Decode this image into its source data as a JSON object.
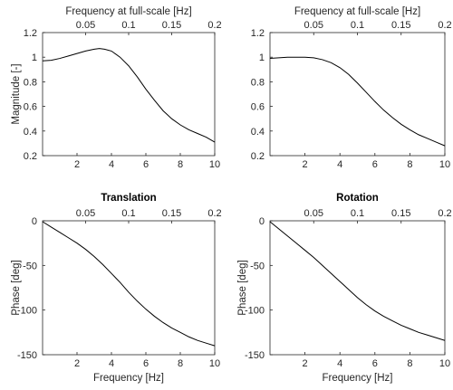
{
  "chart_data": [
    {
      "type": "line",
      "title": "",
      "xlabel": "",
      "ylabel": "Magnitude [-]",
      "top_xlabel": "Frequency at full-scale [Hz]",
      "xlim": [
        0,
        10
      ],
      "ylim": [
        0.2,
        1.2
      ],
      "xticks": [
        2,
        4,
        6,
        8,
        10
      ],
      "xtick_labels": [
        "2",
        "4",
        "6",
        "8",
        "10"
      ],
      "yticks": [
        0.2,
        0.4,
        0.6,
        0.8,
        1,
        1.2
      ],
      "ytick_labels": [
        "0.2",
        "0.4",
        "0.6",
        "0.8",
        "1",
        "1.2"
      ],
      "top_xticks": [
        0.05,
        0.1,
        0.15,
        0.2
      ],
      "top_xtick_labels": [
        "0.05",
        "0.1",
        "0.15",
        "0.2"
      ],
      "top_xlim": [
        0,
        0.2
      ],
      "grid": false,
      "x": [
        0,
        0.5,
        1,
        1.5,
        2,
        2.5,
        3,
        3.3,
        3.6,
        4,
        4.5,
        5,
        5.5,
        6,
        6.5,
        7,
        7.5,
        8,
        8.5,
        9,
        9.5,
        10
      ],
      "y": [
        0.97,
        0.975,
        0.99,
        1.01,
        1.03,
        1.05,
        1.065,
        1.07,
        1.065,
        1.05,
        1.0,
        0.93,
        0.84,
        0.74,
        0.65,
        0.565,
        0.5,
        0.45,
        0.41,
        0.38,
        0.35,
        0.31
      ]
    },
    {
      "type": "line",
      "title": "",
      "xlabel": "",
      "ylabel": "",
      "top_xlabel": "Frequency at full-scale [Hz]",
      "xlim": [
        0,
        10
      ],
      "ylim": [
        0.2,
        1.2
      ],
      "xticks": [
        2,
        4,
        6,
        8,
        10
      ],
      "xtick_labels": [
        "2",
        "4",
        "6",
        "8",
        "10"
      ],
      "yticks": [
        0.2,
        0.4,
        0.6,
        0.8,
        1,
        1.2
      ],
      "ytick_labels": [
        "0.2",
        "0.4",
        "0.6",
        "0.8",
        "1",
        "1.2"
      ],
      "top_xticks": [
        0.05,
        0.1,
        0.15,
        0.2
      ],
      "top_xtick_labels": [
        "0.05",
        "0.1",
        "0.15",
        "0.2"
      ],
      "top_xlim": [
        0,
        0.2
      ],
      "grid": false,
      "x": [
        0,
        0.5,
        1,
        1.5,
        2,
        2.5,
        3,
        3.5,
        4,
        4.5,
        5,
        5.5,
        6,
        6.5,
        7,
        7.5,
        8,
        8.5,
        9,
        9.5,
        10
      ],
      "y": [
        0.99,
        0.995,
        1.0,
        1.0,
        1.0,
        0.995,
        0.98,
        0.955,
        0.915,
        0.86,
        0.79,
        0.715,
        0.64,
        0.57,
        0.51,
        0.455,
        0.41,
        0.37,
        0.34,
        0.31,
        0.28
      ]
    },
    {
      "type": "line",
      "title": "Translation",
      "xlabel": "Frequency [Hz]",
      "ylabel": "Phase [deg]",
      "xlim": [
        0,
        10
      ],
      "ylim": [
        -150,
        0
      ],
      "xticks": [
        2,
        4,
        6,
        8,
        10
      ],
      "xtick_labels": [
        "2",
        "4",
        "6",
        "8",
        "10"
      ],
      "yticks": [
        -150,
        -100,
        -50,
        0
      ],
      "ytick_labels": [
        "-150",
        "-100",
        "-50",
        "0"
      ],
      "top_xticks": [
        0.05,
        0.1,
        0.15,
        0.2
      ],
      "top_xtick_labels": [
        "0.05",
        "0.1",
        "0.15",
        "0.2"
      ],
      "top_xlim": [
        0,
        0.2
      ],
      "grid": false,
      "x": [
        0,
        0.5,
        1,
        1.5,
        2,
        2.5,
        3,
        3.5,
        4,
        4.5,
        5,
        5.5,
        6,
        6.5,
        7,
        7.5,
        8,
        8.5,
        9,
        9.5,
        10
      ],
      "y": [
        -1,
        -7,
        -13,
        -19,
        -25,
        -32,
        -40,
        -49,
        -59,
        -69,
        -80,
        -90,
        -99,
        -107,
        -114,
        -120,
        -125,
        -130,
        -134,
        -137,
        -140
      ]
    },
    {
      "type": "line",
      "title": "Rotation",
      "xlabel": "Frequency [Hz]",
      "ylabel": "Phase [deg]",
      "xlim": [
        0,
        10
      ],
      "ylim": [
        -150,
        0
      ],
      "xticks": [
        2,
        4,
        6,
        8,
        10
      ],
      "xtick_labels": [
        "2",
        "4",
        "6",
        "8",
        "10"
      ],
      "yticks": [
        -150,
        -100,
        -50,
        0
      ],
      "ytick_labels": [
        "-150",
        "-100",
        "-50",
        "0"
      ],
      "top_xticks": [
        0.05,
        0.1,
        0.15,
        0.2
      ],
      "top_xtick_labels": [
        "0.05",
        "0.1",
        "0.15",
        "0.2"
      ],
      "top_xlim": [
        0,
        0.2
      ],
      "grid": false,
      "x": [
        0,
        0.5,
        1,
        1.5,
        2,
        2.5,
        3,
        3.5,
        4,
        4.5,
        5,
        5.5,
        6,
        6.5,
        7,
        7.5,
        8,
        8.5,
        9,
        9.5,
        10
      ],
      "y": [
        -1,
        -9,
        -17,
        -25,
        -33,
        -41,
        -50,
        -59,
        -68,
        -77,
        -86,
        -94,
        -101,
        -107,
        -112,
        -117,
        -121,
        -125,
        -128,
        -131,
        -134
      ]
    }
  ]
}
